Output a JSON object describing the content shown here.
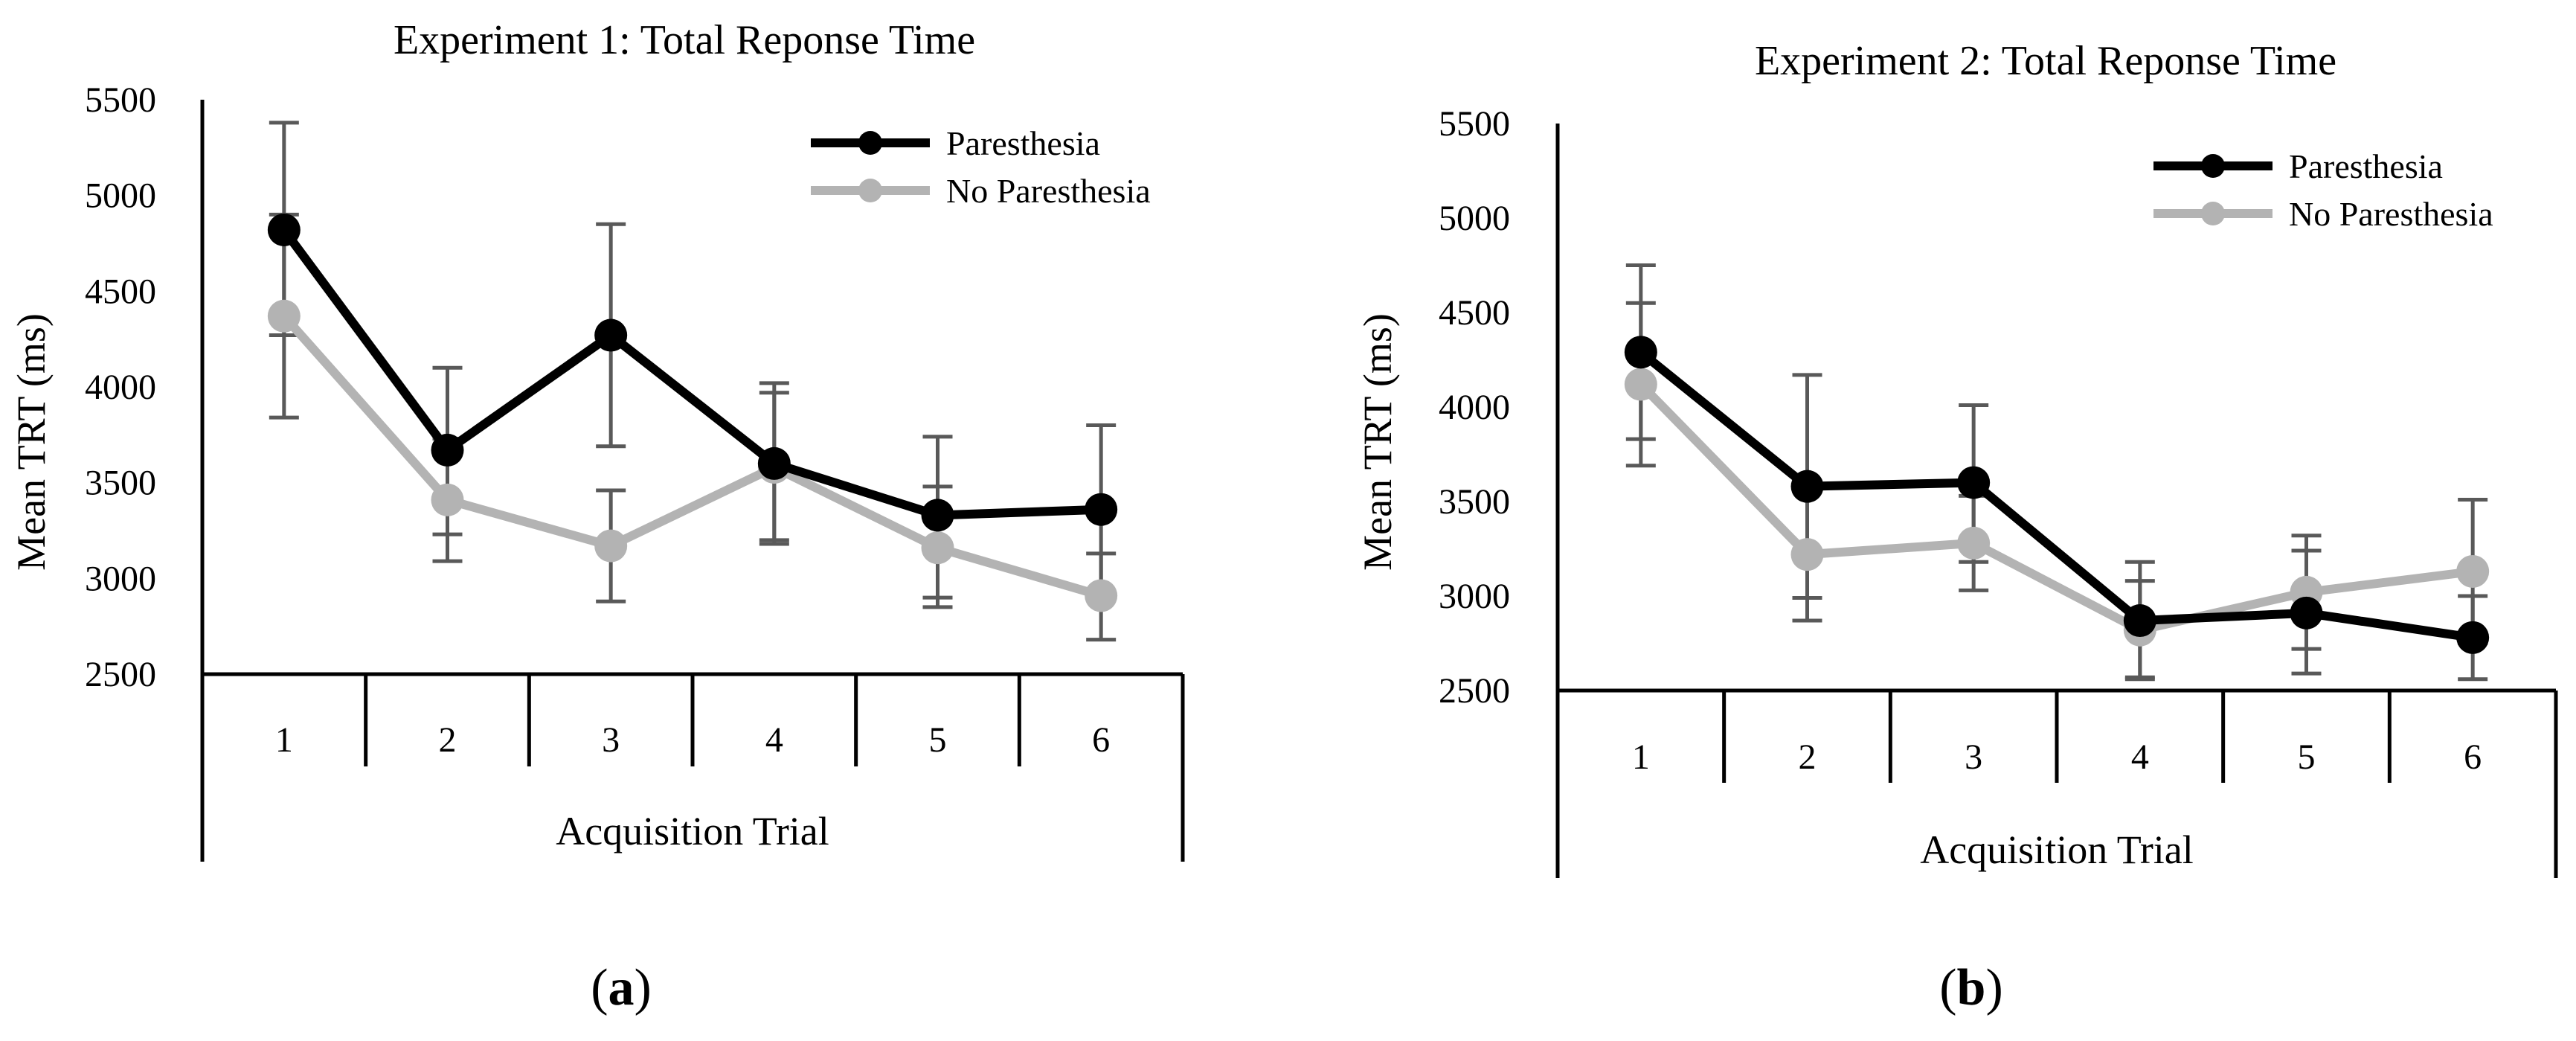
{
  "chart_data": [
    {
      "type": "line",
      "panel": "a",
      "title": "Experiment 1: Total Reponse Time",
      "xlabel": "Acquisition Trial",
      "ylabel": "Mean TRT (ms)",
      "categories": [
        "1",
        "2",
        "3",
        "4",
        "5",
        "6"
      ],
      "ylim": [
        2500,
        5500
      ],
      "yticks": [
        "2500",
        "3000",
        "3500",
        "4000",
        "4500",
        "5000",
        "5500"
      ],
      "legend_position": "top-right",
      "series": [
        {
          "name": "Paresthesia",
          "color": "#000000",
          "values": [
            4820,
            3670,
            4270,
            3600,
            3330,
            3360
          ],
          "err_low": [
            4270,
            3230,
            3690,
            3200,
            2900,
            2930
          ],
          "err_high": [
            5380,
            4100,
            4850,
            3970,
            3740,
            3800
          ]
        },
        {
          "name": "No Paresthesia",
          "color": "#b3b3b3",
          "values": [
            4370,
            3410,
            3170,
            3580,
            3160,
            2910
          ],
          "err_low": [
            3840,
            3090,
            2880,
            3180,
            2850,
            2680
          ],
          "err_high": [
            4900,
            3730,
            3460,
            4020,
            3480,
            3130
          ]
        }
      ]
    },
    {
      "type": "line",
      "panel": "b",
      "title": "Experiment 2: Total Reponse Time",
      "xlabel": "Acquisition Trial",
      "ylabel": "Mean TRT (ms)",
      "categories": [
        "1",
        "2",
        "3",
        "4",
        "5",
        "6"
      ],
      "ylim": [
        2500,
        5500
      ],
      "yticks": [
        "2500",
        "3000",
        "3500",
        "4000",
        "4500",
        "5000",
        "5500"
      ],
      "legend_position": "top-right",
      "series": [
        {
          "name": "Paresthesia",
          "color": "#000000",
          "values": [
            4290,
            3580,
            3600,
            2870,
            2910,
            2780
          ],
          "err_low": [
            3830,
            2990,
            3180,
            2570,
            2590,
            2560
          ],
          "err_high": [
            4750,
            4170,
            4010,
            3180,
            3240,
            3000
          ]
        },
        {
          "name": "No Paresthesia",
          "color": "#b3b3b3",
          "values": [
            4120,
            3220,
            3280,
            2820,
            3020,
            3130
          ],
          "err_low": [
            3690,
            2870,
            3030,
            2560,
            2720,
            2750
          ],
          "err_high": [
            4550,
            3570,
            3530,
            3080,
            3320,
            3510
          ]
        }
      ]
    }
  ],
  "panel_labels": [
    "(a)",
    "(b)"
  ],
  "colors": {
    "error_bar": "#595959",
    "axis": "#000000"
  }
}
